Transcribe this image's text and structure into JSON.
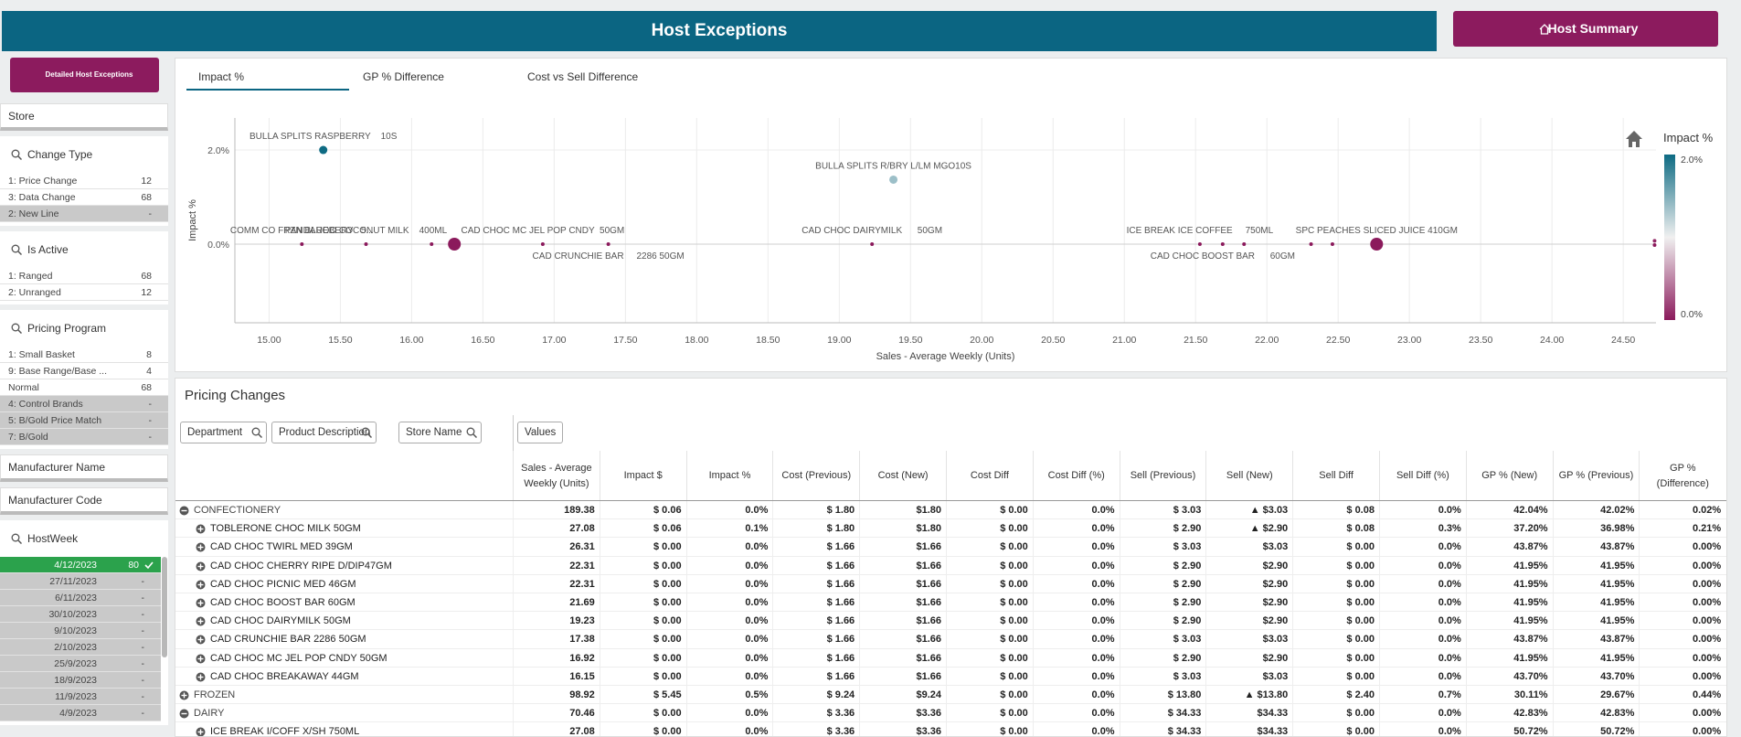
{
  "header": {
    "title": "Host Exceptions",
    "summary_button": "Host Summary"
  },
  "sidebar": {
    "detail_button": "Detailed Host Exceptions",
    "filters": [
      {
        "title": "Store"
      },
      {
        "title": "Change Type",
        "items": [
          {
            "label": "1: Price Change",
            "count": 12
          },
          {
            "label": "3: Data Change",
            "count": 68
          },
          {
            "label": "2: New Line",
            "count": "-"
          }
        ]
      },
      {
        "title": "Is Active",
        "items": [
          {
            "label": "1: Ranged",
            "count": 68
          },
          {
            "label": "2: Unranged",
            "count": 12
          }
        ]
      },
      {
        "title": "Pricing Program",
        "items": [
          {
            "label": "1: Small Basket",
            "count": 8
          },
          {
            "label": "9: Base Range/Base ...",
            "count": 4
          },
          {
            "label": "Normal",
            "count": 68
          },
          {
            "label": "4: Control Brands",
            "count": "-"
          },
          {
            "label": "5: B/Gold Price Match",
            "count": "-"
          },
          {
            "label": "7: B/Gold",
            "count": "-"
          }
        ]
      },
      {
        "title": "Manufacturer Name"
      },
      {
        "title": "Manufacturer Code"
      },
      {
        "title": "HostWeek",
        "items": [
          {
            "label": "4/12/2023",
            "count": 80,
            "selected": true
          },
          {
            "label": "27/11/2023",
            "count": "-"
          },
          {
            "label": "6/11/2023",
            "count": "-"
          },
          {
            "label": "30/10/2023",
            "count": "-"
          },
          {
            "label": "9/10/2023",
            "count": "-"
          },
          {
            "label": "2/10/2023",
            "count": "-"
          },
          {
            "label": "25/9/2023",
            "count": "-"
          },
          {
            "label": "18/9/2023",
            "count": "-"
          },
          {
            "label": "11/9/2023",
            "count": "-"
          },
          {
            "label": "4/9/2023",
            "count": "-"
          }
        ]
      }
    ]
  },
  "chart": {
    "type": "scatter",
    "tabs": [
      "Impact %",
      "GP % Difference",
      "Cost vs Sell Difference"
    ],
    "x_label": "Sales - Average Weekly (Units)",
    "y_label": "Impact %",
    "grid": true,
    "xlim": [
      14.76,
      24.73
    ],
    "ylim": [
      -1.67,
      2.68
    ],
    "xticks": [
      {
        "value": 15,
        "label": "15.00"
      },
      {
        "value": 15.5,
        "label": "15.50"
      },
      {
        "value": 16,
        "label": "16.00"
      },
      {
        "value": 16.5,
        "label": "16.50"
      },
      {
        "value": 17,
        "label": "17.00"
      },
      {
        "value": 17.5,
        "label": "17.50"
      },
      {
        "value": 18,
        "label": "18.00"
      },
      {
        "value": 18.5,
        "label": "18.50"
      },
      {
        "value": 19,
        "label": "19.00"
      },
      {
        "value": 19.5,
        "label": "19.50"
      },
      {
        "value": 20,
        "label": "20.00"
      },
      {
        "value": 20.5,
        "label": "20.50"
      },
      {
        "value": 21,
        "label": "21.00"
      },
      {
        "value": 21.5,
        "label": "21.50"
      },
      {
        "value": 22,
        "label": "22.00"
      },
      {
        "value": 22.5,
        "label": "22.50"
      },
      {
        "value": 23,
        "label": "23.00"
      },
      {
        "value": 23.5,
        "label": "23.50"
      },
      {
        "value": 24,
        "label": "24.00"
      },
      {
        "value": 24.5,
        "label": "24.50"
      }
    ],
    "yticks": [
      {
        "value": 0,
        "label": "0.0%"
      },
      {
        "value": 2,
        "label": "2.0%"
      }
    ],
    "color_scale": {
      "title": "Impact %",
      "min": 0,
      "max": 2,
      "low": "#8b1a5c",
      "mid": "#f0f0f0",
      "high": "#0e6b83",
      "ticks": [
        {
          "value": 2,
          "label": "2.0%"
        },
        {
          "value": 0,
          "label": "0.0%"
        }
      ]
    },
    "points": [
      {
        "x": 15.23,
        "y": 0,
        "size": 1,
        "label": "COMM CO FRZN BLUEBERY   5..."
      },
      {
        "x": 15.38,
        "y": 2.0,
        "size": 2,
        "label": "BULLA SPLITS RASPBERRY    10S"
      },
      {
        "x": 15.68,
        "y": 0,
        "size": 1,
        "label": "PANDAROO COCONUT MILK    400ML"
      },
      {
        "x": 16.14,
        "y": 0,
        "size": 1
      },
      {
        "x": 16.3,
        "y": 0,
        "size": 3
      },
      {
        "x": 16.92,
        "y": 0,
        "size": 1,
        "label": "CAD CHOC MC JEL POP CNDY  50GM"
      },
      {
        "x": 17.38,
        "y": 0,
        "size": 1,
        "label": "CAD CRUNCHIE BAR     2286 50GM"
      },
      {
        "x": 19.23,
        "y": 0,
        "size": 1,
        "label": "CAD CHOC DAIRYMILK      50GM"
      },
      {
        "x": 19.38,
        "y": 1.37,
        "size": 2,
        "label": "BULLA SPLITS R/BRY L/LM MGO10S"
      },
      {
        "x": 21.53,
        "y": 0,
        "size": 1,
        "label": "ICE BREAK ICE COFFEE     750ML"
      },
      {
        "x": 21.69,
        "y": 0,
        "size": 1,
        "label": "CAD CHOC BOOST BAR      60GM"
      },
      {
        "x": 21.84,
        "y": 0,
        "size": 1
      },
      {
        "x": 22.31,
        "y": 0,
        "size": 1
      },
      {
        "x": 22.46,
        "y": 0,
        "size": 1
      },
      {
        "x": 22.77,
        "y": 0,
        "size": 3,
        "label": "SPC PEACHES SLICED JUICE 410GM"
      },
      {
        "x": 24.72,
        "y": 0.07,
        "size": 1
      },
      {
        "x": 24.72,
        "y": -0.02,
        "size": 1
      }
    ]
  },
  "table": {
    "title": "Pricing Changes",
    "dimensions": [
      "Department",
      "Product Description",
      "Store Name"
    ],
    "values_button": "Values",
    "columns": [
      "Sales - Average Weekly (Units)",
      "Impact $",
      "Impact %",
      "Cost (Previous)",
      "Cost (New)",
      "Cost Diff",
      "Cost Diff (%)",
      "Sell (Previous)",
      "Sell (New)",
      "Sell Diff",
      "Sell Diff (%)",
      "GP % (New)",
      "GP % (Previous)",
      "GP % (Difference)"
    ],
    "rows": [
      {
        "name": "CONFECTIONERY",
        "level": 0,
        "expanded": true,
        "cells": [
          "189.38",
          "$ 0.06",
          "0.0%",
          "$ 1.80",
          "$1.80",
          "$ 0.00",
          "0.0%",
          "$ 3.03",
          "▲ $3.03",
          "$ 0.08",
          "0.0%",
          "42.04%",
          "42.02%",
          "0.02%"
        ]
      },
      {
        "name": "TOBLERONE CHOC MILK 50GM",
        "level": 1,
        "expanded": false,
        "cells": [
          "27.08",
          "$ 0.06",
          "0.1%",
          "$ 1.80",
          "$1.80",
          "$ 0.00",
          "0.0%",
          "$ 2.90",
          "▲ $2.90",
          "$ 0.08",
          "0.3%",
          "37.20%",
          "36.98%",
          "0.21%"
        ]
      },
      {
        "name": "CAD CHOC TWIRL MED 39GM",
        "level": 1,
        "expanded": false,
        "cells": [
          "26.31",
          "$ 0.00",
          "0.0%",
          "$ 1.66",
          "$1.66",
          "$ 0.00",
          "0.0%",
          "$ 3.03",
          "$3.03",
          "$ 0.00",
          "0.0%",
          "43.87%",
          "43.87%",
          "0.00%"
        ]
      },
      {
        "name": "CAD CHOC CHERRY RIPE D/DIP47GM",
        "level": 1,
        "expanded": false,
        "cells": [
          "22.31",
          "$ 0.00",
          "0.0%",
          "$ 1.66",
          "$1.66",
          "$ 0.00",
          "0.0%",
          "$ 2.90",
          "$2.90",
          "$ 0.00",
          "0.0%",
          "41.95%",
          "41.95%",
          "0.00%"
        ]
      },
      {
        "name": "CAD CHOC PICNIC MED 46GM",
        "level": 1,
        "expanded": false,
        "cells": [
          "22.31",
          "$ 0.00",
          "0.0%",
          "$ 1.66",
          "$1.66",
          "$ 0.00",
          "0.0%",
          "$ 2.90",
          "$2.90",
          "$ 0.00",
          "0.0%",
          "41.95%",
          "41.95%",
          "0.00%"
        ]
      },
      {
        "name": "CAD CHOC BOOST BAR 60GM",
        "level": 1,
        "expanded": false,
        "cells": [
          "21.69",
          "$ 0.00",
          "0.0%",
          "$ 1.66",
          "$1.66",
          "$ 0.00",
          "0.0%",
          "$ 2.90",
          "$2.90",
          "$ 0.00",
          "0.0%",
          "41.95%",
          "41.95%",
          "0.00%"
        ]
      },
      {
        "name": "CAD CHOC DAIRYMILK 50GM",
        "level": 1,
        "expanded": false,
        "cells": [
          "19.23",
          "$ 0.00",
          "0.0%",
          "$ 1.66",
          "$1.66",
          "$ 0.00",
          "0.0%",
          "$ 2.90",
          "$2.90",
          "$ 0.00",
          "0.0%",
          "41.95%",
          "41.95%",
          "0.00%"
        ]
      },
      {
        "name": "CAD CRUNCHIE BAR 2286 50GM",
        "level": 1,
        "expanded": false,
        "cells": [
          "17.38",
          "$ 0.00",
          "0.0%",
          "$ 1.66",
          "$1.66",
          "$ 0.00",
          "0.0%",
          "$ 3.03",
          "$3.03",
          "$ 0.00",
          "0.0%",
          "43.87%",
          "43.87%",
          "0.00%"
        ]
      },
      {
        "name": "CAD CHOC MC JEL POP CNDY 50GM",
        "level": 1,
        "expanded": false,
        "cells": [
          "16.92",
          "$ 0.00",
          "0.0%",
          "$ 1.66",
          "$1.66",
          "$ 0.00",
          "0.0%",
          "$ 2.90",
          "$2.90",
          "$ 0.00",
          "0.0%",
          "41.95%",
          "41.95%",
          "0.00%"
        ]
      },
      {
        "name": "CAD CHOC BREAKAWAY 44GM",
        "level": 1,
        "expanded": false,
        "cells": [
          "16.15",
          "$ 0.00",
          "0.0%",
          "$ 1.66",
          "$1.66",
          "$ 0.00",
          "0.0%",
          "$ 3.03",
          "$3.03",
          "$ 0.00",
          "0.0%",
          "43.70%",
          "43.70%",
          "0.00%"
        ]
      },
      {
        "name": "FROZEN",
        "level": 0,
        "expanded": false,
        "cells": [
          "98.92",
          "$ 5.45",
          "0.5%",
          "$ 9.24",
          "$9.24",
          "$ 0.00",
          "0.0%",
          "$ 13.80",
          "▲ $13.80",
          "$ 2.40",
          "0.7%",
          "30.11%",
          "29.67%",
          "0.44%"
        ]
      },
      {
        "name": "DAIRY",
        "level": 0,
        "expanded": true,
        "cells": [
          "70.46",
          "$ 0.00",
          "0.0%",
          "$ 3.36",
          "$3.36",
          "$ 0.00",
          "0.0%",
          "$ 34.33",
          "$34.33",
          "$ 0.00",
          "0.0%",
          "42.83%",
          "42.83%",
          "0.00%"
        ]
      },
      {
        "name": "ICE BREAK I/COFF X/SH 750ML",
        "level": 1,
        "expanded": false,
        "cells": [
          "27.08",
          "$ 0.00",
          "0.0%",
          "$ 3.36",
          "$3.36",
          "$ 0.00",
          "0.0%",
          "$ 34.33",
          "$34.33",
          "$ 0.00",
          "0.0%",
          "50.72%",
          "50.72%",
          "0.00%"
        ]
      }
    ]
  }
}
